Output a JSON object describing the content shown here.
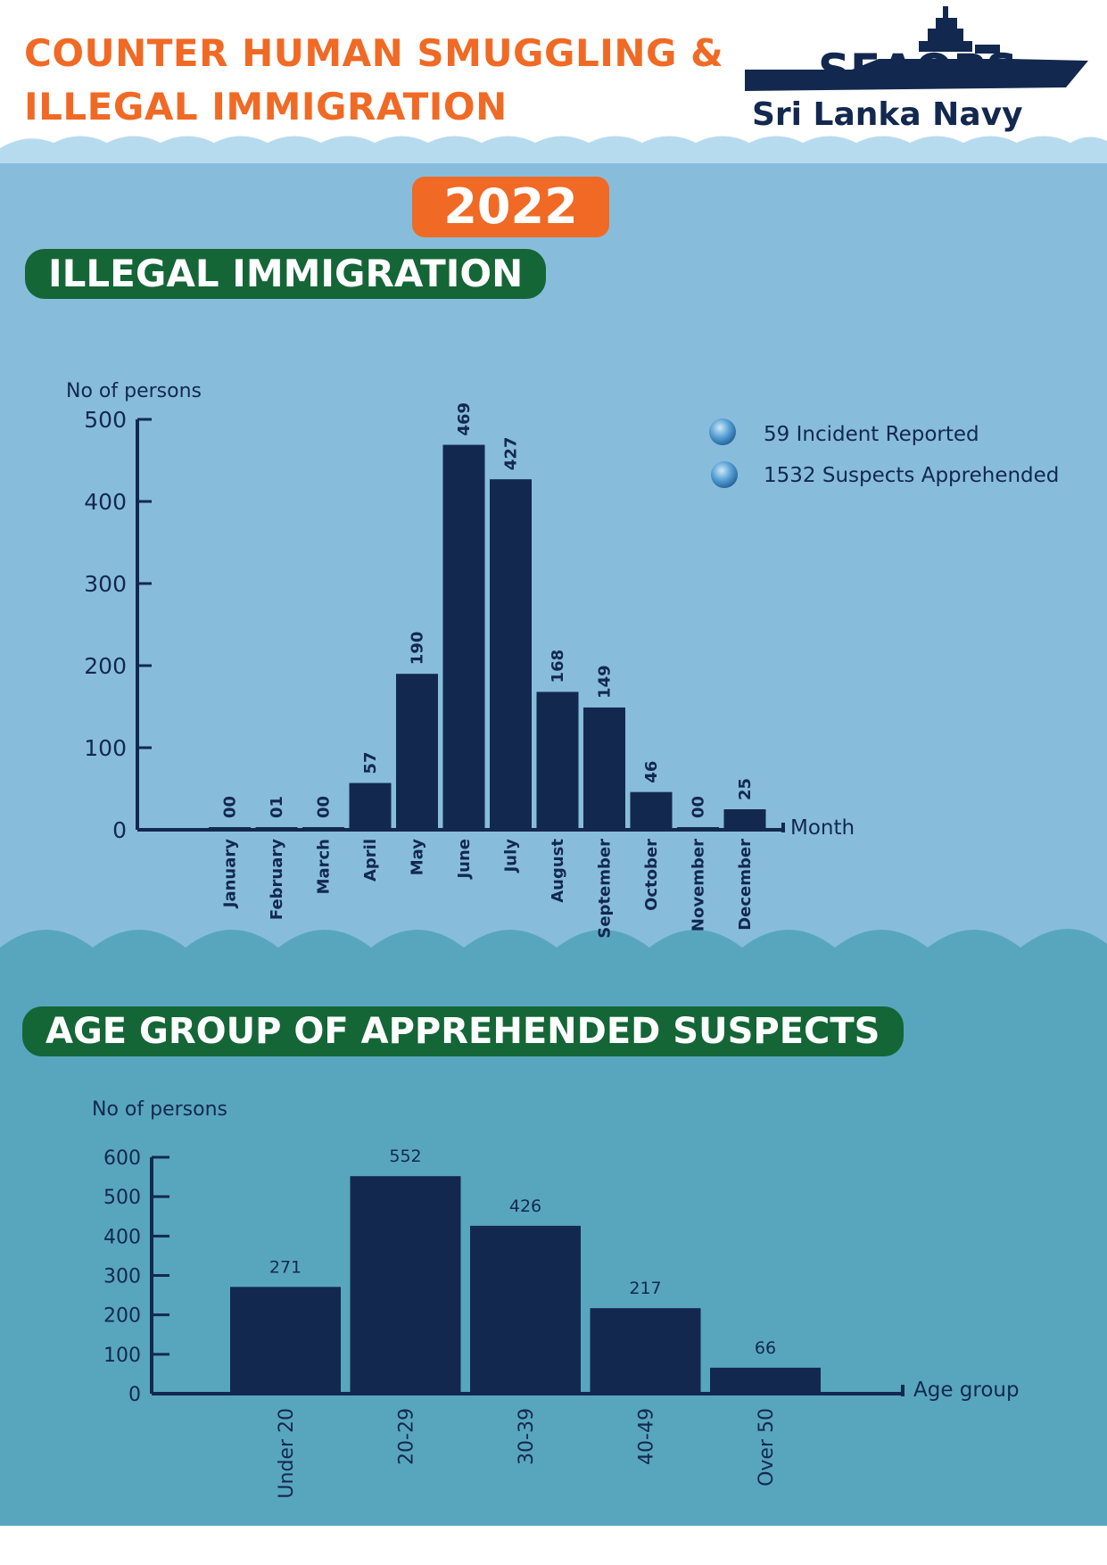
{
  "header": {
    "title_line1": "COUNTER HUMAN SMUGGLING  &",
    "title_line2": "ILLEGAL IMMIGRATION",
    "logo_text": "SEAOPS",
    "logo_subtext": "Sri Lanka Navy"
  },
  "year": "2022",
  "colors": {
    "orange": "#f06a25",
    "green": "#146637",
    "navy": "#13284f",
    "sky": "#87bddb",
    "teal": "#58a6be"
  },
  "section1": {
    "title": "ILLEGAL IMMIGRATION"
  },
  "section2": {
    "title": "AGE GROUP OF APPREHENDED SUSPECTS"
  },
  "legend": [
    {
      "text": "59 Incident Reported"
    },
    {
      "text": "1532 Suspects Apprehended"
    }
  ],
  "chart_data": [
    {
      "type": "bar",
      "title": "ILLEGAL IMMIGRATION",
      "ylabel": "No of persons",
      "xlabel": "Month",
      "ylim": [
        0,
        500
      ],
      "yticks": [
        0,
        100,
        200,
        300,
        400,
        500
      ],
      "categories": [
        "January",
        "February",
        "March",
        "April",
        "May",
        "June",
        "July",
        "August",
        "September",
        "October",
        "November",
        "December"
      ],
      "values": [
        0,
        1,
        0,
        57,
        190,
        469,
        427,
        168,
        149,
        46,
        0,
        25
      ],
      "value_labels": [
        "00",
        "01",
        "00",
        "57",
        "190",
        "469",
        "427",
        "168",
        "149",
        "46",
        "00",
        "25"
      ]
    },
    {
      "type": "bar",
      "title": "AGE GROUP OF APPREHENDED SUSPECTS",
      "ylabel": "No of persons",
      "xlabel": "Age group",
      "ylim": [
        0,
        600
      ],
      "yticks": [
        0,
        100,
        200,
        300,
        400,
        500,
        600
      ],
      "categories": [
        "Under 20",
        "20-29",
        "30-39",
        "40-49",
        "Over 50"
      ],
      "values": [
        271,
        552,
        426,
        217,
        66
      ],
      "value_labels": [
        "271",
        "552",
        "426",
        "217",
        "66"
      ]
    }
  ]
}
